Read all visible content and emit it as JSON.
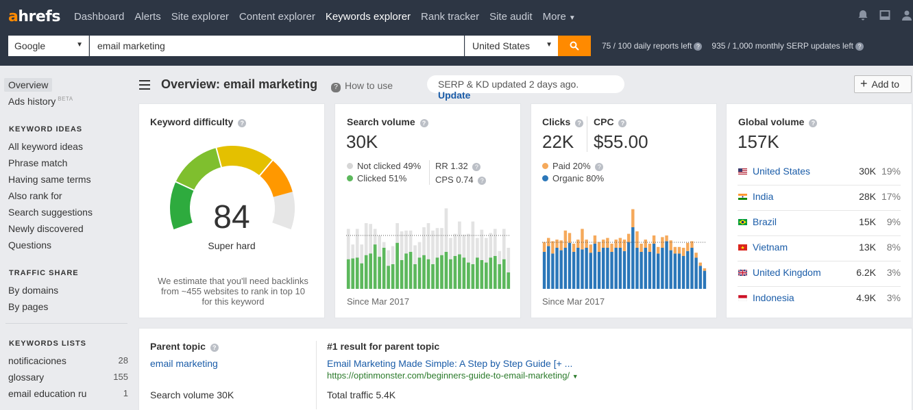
{
  "logo": {
    "a": "a",
    "rest": "hrefs"
  },
  "nav": {
    "items": [
      "Dashboard",
      "Alerts",
      "Site explorer",
      "Content explorer",
      "Keywords explorer",
      "Rank tracker",
      "Site audit"
    ],
    "more": "More",
    "active": "Keywords explorer"
  },
  "search": {
    "engine": "Google",
    "keyword": "email marketing",
    "country": "United States",
    "daily_reports": "75 / 100 daily reports left",
    "serp_updates": "935 / 1,000 monthly SERP updates left"
  },
  "sidebar": {
    "overview": "Overview",
    "ads_history": "Ads history",
    "beta": "BETA",
    "keyword_ideas_head": "KEYWORD IDEAS",
    "keyword_ideas": [
      "All keyword ideas",
      "Phrase match",
      "Having same terms",
      "Also rank for",
      "Search suggestions",
      "Newly discovered",
      "Questions"
    ],
    "traffic_share_head": "TRAFFIC SHARE",
    "traffic_share": [
      "By domains",
      "By pages"
    ],
    "keywords_lists_head": "KEYWORDS LISTS",
    "lists": [
      {
        "name": "notificaciones",
        "count": "28"
      },
      {
        "name": "glossary",
        "count": "155"
      },
      {
        "name": "email education ru",
        "count": "1"
      }
    ]
  },
  "header": {
    "title": "Overview: email marketing",
    "how_to_use": "How to use",
    "serp_status": "SERP & KD updated 2 days ago.",
    "update": "Update",
    "add_to": "Add to"
  },
  "kd": {
    "title": "Keyword difficulty",
    "value": 84,
    "value_text": "84",
    "label": "Super hard",
    "desc1": "We estimate that you'll need backlinks",
    "desc2": "from ~455 websites to rank in top 10",
    "desc3": "for this keyword",
    "colors": {
      "green": "#2eab3e",
      "lime": "#7fbf2e",
      "yellow": "#e4c000",
      "orange": "#ff9800",
      "empty": "#e6e6e6"
    }
  },
  "sv": {
    "title": "Search volume",
    "value": "30K",
    "not_clicked": "Not clicked 49%",
    "clicked": "Clicked 51%",
    "rr": "RR 1.32",
    "cps": "CPS 0.74",
    "since": "Since Mar 2017",
    "colors": {
      "total": "#e3e3e3",
      "clicked": "#5cb85c"
    }
  },
  "clicks": {
    "title": "Clicks",
    "value": "22K",
    "cpc_title": "CPC",
    "cpc_value": "$55.00",
    "paid": "Paid 20%",
    "organic": "Organic 80%",
    "since": "Since Mar 2017",
    "colors": {
      "paid": "#f5a95b",
      "organic": "#2b77b9"
    }
  },
  "gv": {
    "title": "Global volume",
    "value": "157K",
    "rows": [
      {
        "flag": "us",
        "country": "United States",
        "volume": "30K",
        "pct": "19%"
      },
      {
        "flag": "in",
        "country": "India",
        "volume": "28K",
        "pct": "17%"
      },
      {
        "flag": "br",
        "country": "Brazil",
        "volume": "15K",
        "pct": "9%"
      },
      {
        "flag": "vn",
        "country": "Vietnam",
        "volume": "13K",
        "pct": "8%"
      },
      {
        "flag": "gb",
        "country": "United Kingdom",
        "volume": "6.2K",
        "pct": "3%"
      },
      {
        "flag": "id",
        "country": "Indonesia",
        "volume": "4.9K",
        "pct": "3%"
      }
    ]
  },
  "parent": {
    "title": "Parent topic",
    "topic": "email marketing",
    "search_volume": "Search volume 30K",
    "result_title": "#1 result for parent topic",
    "result_link": "Email Marketing Made Simple: A Step by Step Guide [+ ...",
    "result_url": "https://optinmonster.com/beginners-guide-to-email-marketing/",
    "total_traffic": "Total traffic 5.4K"
  },
  "chart_data": [
    {
      "type": "bar",
      "series": [
        {
          "name": "Not clicked",
          "values": [
            0.73,
            0.54,
            0.73,
            0.54,
            0.8,
            0.79,
            0.73,
            0.65,
            0.57,
            0.47,
            0.52,
            0.8,
            0.7,
            0.71,
            0.71,
            0.53,
            0.57,
            0.75,
            0.8,
            0.71,
            0.74,
            0.74,
            0.98,
            0.62,
            0.67,
            0.82,
            0.66,
            0.67,
            0.82,
            0.62,
            0.72,
            0.62,
            0.68,
            0.73,
            0.46,
            0.73,
            0.5
          ]
        },
        {
          "name": "Clicked",
          "values": [
            0.36,
            0.37,
            0.38,
            0.31,
            0.41,
            0.43,
            0.54,
            0.39,
            0.5,
            0.28,
            0.3,
            0.56,
            0.35,
            0.43,
            0.45,
            0.3,
            0.38,
            0.41,
            0.36,
            0.3,
            0.38,
            0.41,
            0.45,
            0.36,
            0.4,
            0.42,
            0.38,
            0.32,
            0.3,
            0.38,
            0.35,
            0.32,
            0.38,
            0.4,
            0.3,
            0.36,
            0.2
          ]
        }
      ]
    },
    {
      "type": "bar",
      "series": [
        {
          "name": "Organic",
          "values": [
            0.45,
            0.52,
            0.43,
            0.5,
            0.47,
            0.5,
            0.56,
            0.45,
            0.5,
            0.48,
            0.5,
            0.44,
            0.55,
            0.45,
            0.5,
            0.5,
            0.45,
            0.5,
            0.5,
            0.46,
            0.57,
            0.75,
            0.5,
            0.45,
            0.5,
            0.45,
            0.55,
            0.43,
            0.5,
            0.58,
            0.47,
            0.43,
            0.43,
            0.4,
            0.46,
            0.5,
            0.38,
            0.28,
            0.22
          ]
        },
        {
          "name": "Paid",
          "values": [
            0.12,
            0.1,
            0.15,
            0.1,
            0.12,
            0.21,
            0.12,
            0.1,
            0.1,
            0.25,
            0.1,
            0.1,
            0.1,
            0.12,
            0.1,
            0.12,
            0.1,
            0.1,
            0.12,
            0.14,
            0.1,
            0.22,
            0.2,
            0.1,
            0.1,
            0.1,
            0.1,
            0.08,
            0.13,
            0.07,
            0.12,
            0.08,
            0.08,
            0.1,
            0.1,
            0.08,
            0.06,
            0.04,
            0.03
          ]
        }
      ]
    }
  ]
}
